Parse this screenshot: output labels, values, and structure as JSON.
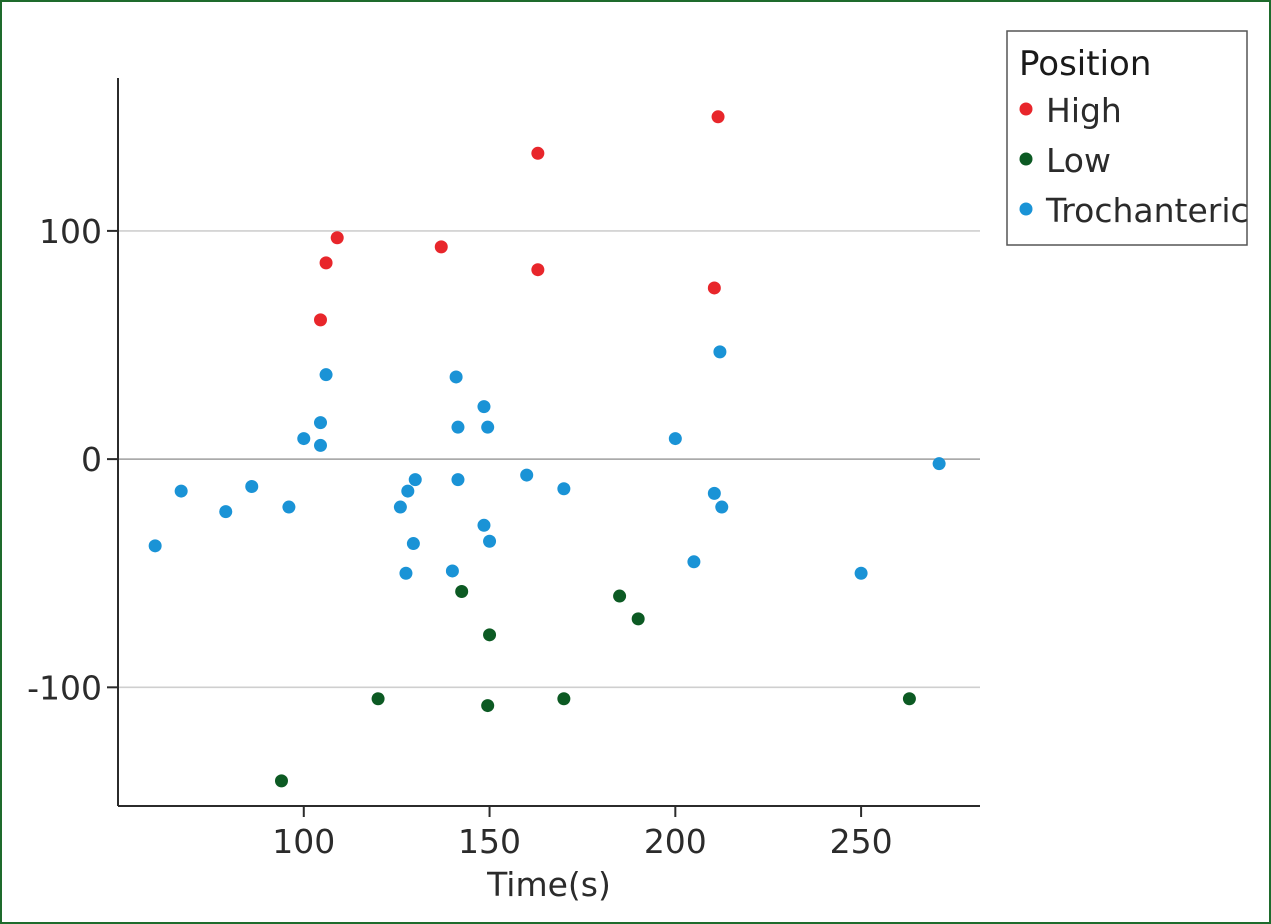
{
  "chart_data": {
    "type": "scatter",
    "title": "",
    "xlabel": "Time(s)",
    "ylabel": "",
    "xlim": [
      50,
      282
    ],
    "ylim": [
      -152,
      167
    ],
    "xticks": [
      100,
      150,
      200,
      250
    ],
    "xtick_labels": [
      "100",
      "150",
      "200",
      "250"
    ],
    "yticks": [
      -100,
      0,
      100
    ],
    "ytick_labels": [
      "-100",
      "0",
      "100"
    ],
    "grid": "horizontal",
    "legend": {
      "title": "Position",
      "placement": "top-right outside"
    },
    "series": [
      {
        "name": "High",
        "color": "#e8262b",
        "points": [
          [
            104.5,
            61
          ],
          [
            106,
            86
          ],
          [
            109,
            97
          ],
          [
            137,
            93
          ],
          [
            163,
            134
          ],
          [
            163,
            83
          ],
          [
            210.5,
            75
          ],
          [
            211.5,
            150
          ]
        ]
      },
      {
        "name": "Low",
        "color": "#0c5a23",
        "points": [
          [
            94,
            -141
          ],
          [
            120,
            -105
          ],
          [
            142.5,
            -58
          ],
          [
            149.5,
            -108
          ],
          [
            150,
            -77
          ],
          [
            170,
            -105
          ],
          [
            185,
            -60
          ],
          [
            190,
            -70
          ],
          [
            263,
            -105
          ]
        ]
      },
      {
        "name": "Trochanteric",
        "color": "#1a93d6",
        "points": [
          [
            60,
            -38
          ],
          [
            67,
            -14
          ],
          [
            79,
            -23
          ],
          [
            86,
            -12
          ],
          [
            96,
            -21
          ],
          [
            100,
            9
          ],
          [
            104.5,
            16
          ],
          [
            104.5,
            6
          ],
          [
            106,
            37
          ],
          [
            126,
            -21
          ],
          [
            128,
            -14
          ],
          [
            127.5,
            -50
          ],
          [
            129.5,
            -37
          ],
          [
            130,
            -9
          ],
          [
            140,
            -49
          ],
          [
            141,
            36
          ],
          [
            141.5,
            14
          ],
          [
            141.5,
            -9
          ],
          [
            148.5,
            23
          ],
          [
            148.5,
            -29
          ],
          [
            149.5,
            14
          ],
          [
            150,
            -36
          ],
          [
            160,
            -7
          ],
          [
            170,
            -13
          ],
          [
            200,
            9
          ],
          [
            205,
            -45
          ],
          [
            210.5,
            -15
          ],
          [
            212,
            47
          ],
          [
            212.5,
            -21
          ],
          [
            250,
            -50
          ],
          [
            271,
            -2
          ]
        ]
      }
    ]
  }
}
